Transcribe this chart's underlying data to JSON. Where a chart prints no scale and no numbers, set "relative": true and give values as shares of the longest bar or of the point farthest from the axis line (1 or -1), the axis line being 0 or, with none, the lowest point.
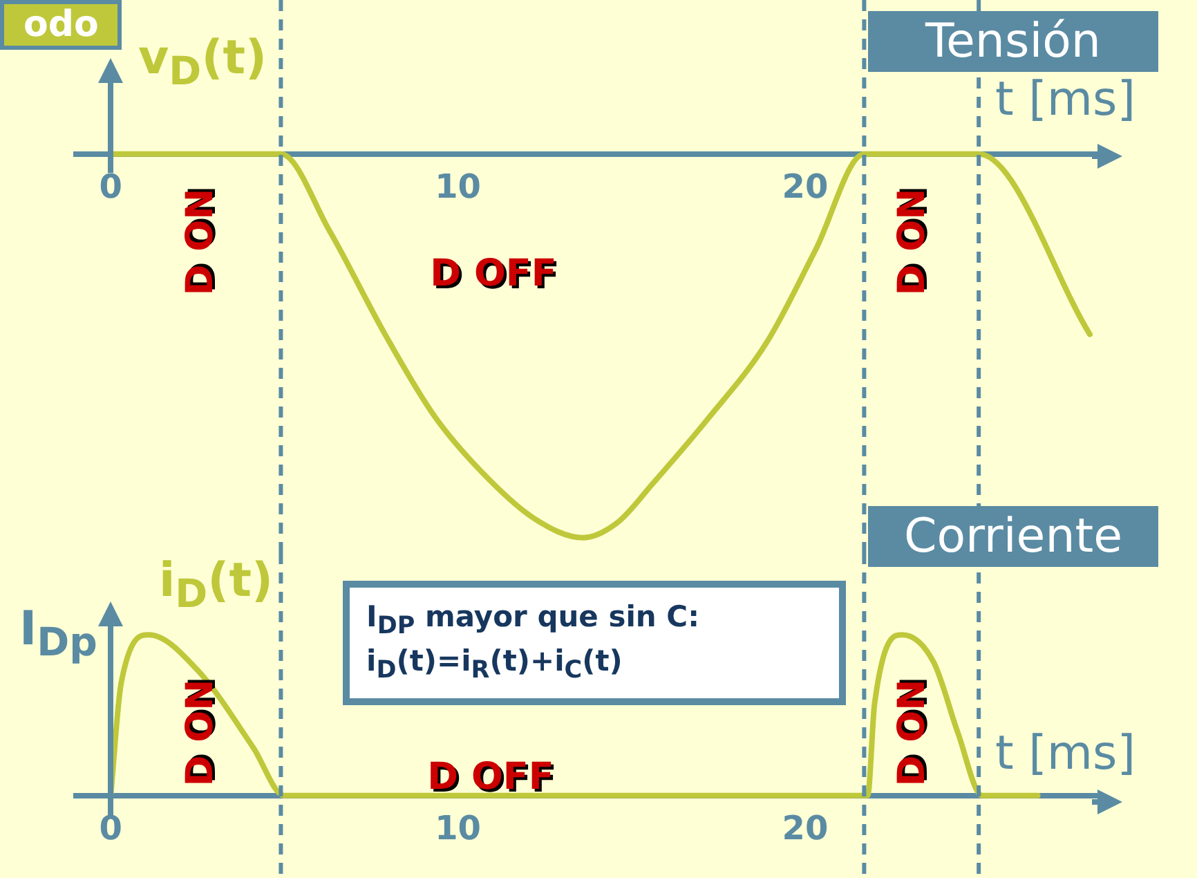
{
  "chart_data": [
    {
      "type": "line",
      "title": "Tensión",
      "xlabel": "t [ms]",
      "relative": true,
      "xlim": [
        -1,
        28.5
      ],
      "xticks": [
        0,
        10,
        20
      ],
      "legend": false,
      "grid": false,
      "line_style": "solid",
      "marker": "none",
      "series": [
        {
          "name": "v$_{D}$(t)",
          "color": "#bfc83a",
          "x": [
            0,
            4.9,
            6.3,
            7.9,
            9.3,
            10.7,
            12.2,
            13.6,
            14.6,
            15.6,
            17.2,
            18.9,
            20.3,
            21.7,
            25.0,
            28.2
          ],
          "values": [
            0,
            0,
            -0.2,
            -0.47,
            -0.68,
            -0.83,
            -0.95,
            -1,
            -0.96,
            -0.86,
            -0.69,
            -0.49,
            -0.25,
            0,
            0,
            -0.47
          ]
        }
      ],
      "ref_lines": [
        {
          "axis": "x",
          "value": 4.9,
          "line_style": "dashed",
          "color": "#5a8ba3"
        },
        {
          "axis": "x",
          "value": 21.7,
          "line_style": "dashed",
          "color": "#5a8ba3"
        },
        {
          "axis": "x",
          "value": 25.0,
          "line_style": "dashed",
          "color": "#5a8ba3"
        }
      ],
      "annotations": [
        "odo",
        "D ON",
        "D OFF",
        "D ON"
      ]
    },
    {
      "type": "line",
      "title": "Corriente",
      "xlabel": "t [ms]",
      "ylabel": "I$_{Dp}$",
      "relative": true,
      "xlim": [
        -1,
        28.5
      ],
      "xticks": [
        0,
        10,
        20
      ],
      "legend": false,
      "grid": false,
      "line_style": "solid",
      "marker": "none",
      "series": [
        {
          "name": "i$_{D}$(t)",
          "color": "#bfc83a",
          "x": [
            0,
            0.3,
            1.1,
            2.5,
            4.1,
            5.0,
            21.8,
            22.0,
            22.8,
            23.7,
            24.4,
            25.1,
            26.7
          ],
          "values": [
            0,
            0.7,
            1,
            0.78,
            0.3,
            0,
            0,
            0.57,
            1,
            0.83,
            0.39,
            0,
            0
          ]
        }
      ],
      "ref_lines": [
        {
          "axis": "x",
          "value": 4.9,
          "line_style": "dashed",
          "color": "#5a8ba3"
        },
        {
          "axis": "x",
          "value": 21.7,
          "line_style": "dashed",
          "color": "#5a8ba3"
        },
        {
          "axis": "x",
          "value": 25.0,
          "line_style": "dashed",
          "color": "#5a8ba3"
        }
      ],
      "annotations": [
        "I$_{DP}$ mayor que sin C:\ni$_{D}$(t)=i$_{R}$(t)+i$_{C}$(t)",
        "D ON",
        "D OFF",
        "D ON"
      ]
    }
  ]
}
